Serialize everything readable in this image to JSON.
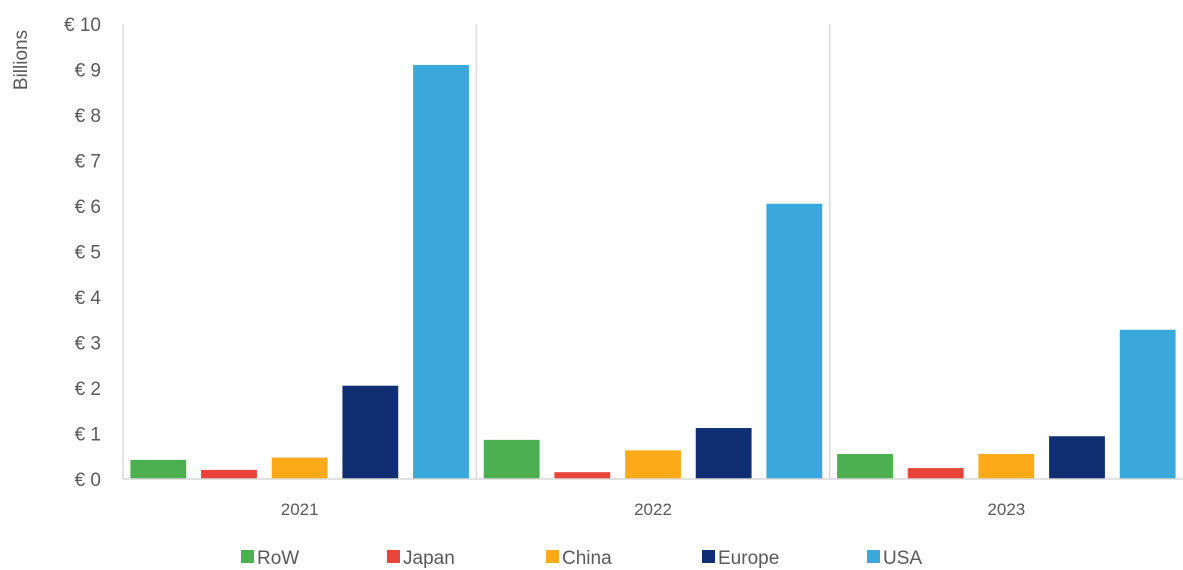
{
  "chart_data": {
    "type": "bar",
    "title": "",
    "xlabel": "",
    "ylabel": "Billions",
    "ylim": [
      0,
      10
    ],
    "y_ticks": [
      0,
      1,
      2,
      3,
      4,
      5,
      6,
      7,
      8,
      9,
      10
    ],
    "y_tick_labels": [
      "€ 0",
      "€ 1",
      "€ 2",
      "€ 3",
      "€ 4",
      "€ 5",
      "€ 6",
      "€ 7",
      "€ 8",
      "€ 9",
      "€ 10"
    ],
    "categories": [
      "2021",
      "2022",
      "2023"
    ],
    "series": [
      {
        "name": "RoW",
        "color": "#4CAF50",
        "values": [
          0.42,
          0.86,
          0.55
        ]
      },
      {
        "name": "Japan",
        "color": "#E8443A",
        "values": [
          0.2,
          0.15,
          0.24
        ]
      },
      {
        "name": "China",
        "color": "#FDAA19",
        "values": [
          0.47,
          0.63,
          0.55
        ]
      },
      {
        "name": "Europe",
        "color": "#102E72",
        "values": [
          2.05,
          1.12,
          0.94
        ]
      },
      {
        "name": "USA",
        "color": "#3AA8DB",
        "values": [
          9.1,
          6.05,
          3.28
        ]
      }
    ],
    "grid": {
      "horizontal": false,
      "category_separators": true
    },
    "legend_position": "bottom"
  }
}
